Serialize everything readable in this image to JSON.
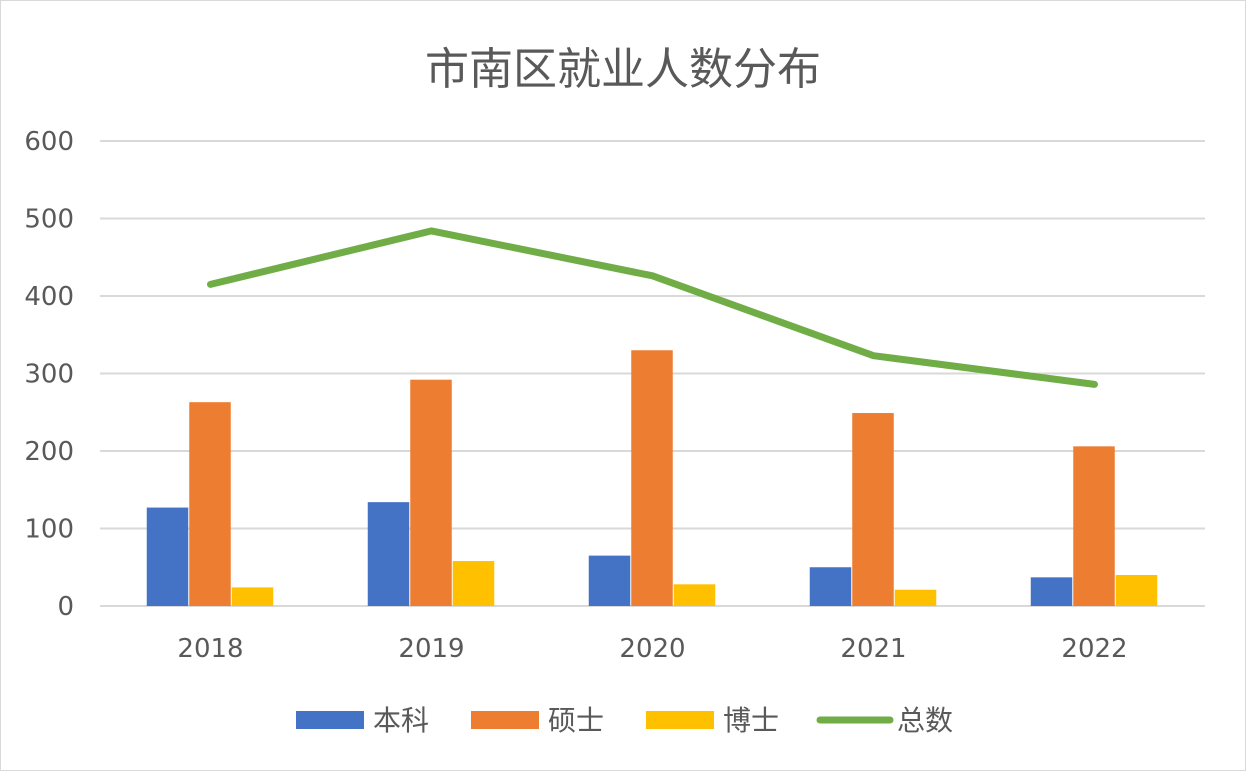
{
  "chart_data": {
    "type": "bar",
    "title": "市南区就业人数分布",
    "categories": [
      "2018",
      "2019",
      "2020",
      "2021",
      "2022"
    ],
    "ylim": [
      0,
      600
    ],
    "yticks": [
      0,
      100,
      200,
      300,
      400,
      500,
      600
    ],
    "grid": true,
    "legend_placement": "bottom",
    "series": [
      {
        "name": "本科",
        "type": "bar",
        "color": "#4472C4",
        "values": [
          127,
          134,
          65,
          50,
          37
        ]
      },
      {
        "name": "硕士",
        "type": "bar",
        "color": "#ED7D31",
        "values": [
          263,
          292,
          330,
          249,
          206
        ]
      },
      {
        "name": "博士",
        "type": "bar",
        "color": "#FFC000",
        "values": [
          24,
          58,
          28,
          21,
          40
        ]
      },
      {
        "name": "总数",
        "type": "line",
        "color": "#70AD47",
        "values": [
          415,
          484,
          426,
          323,
          286
        ]
      }
    ]
  }
}
